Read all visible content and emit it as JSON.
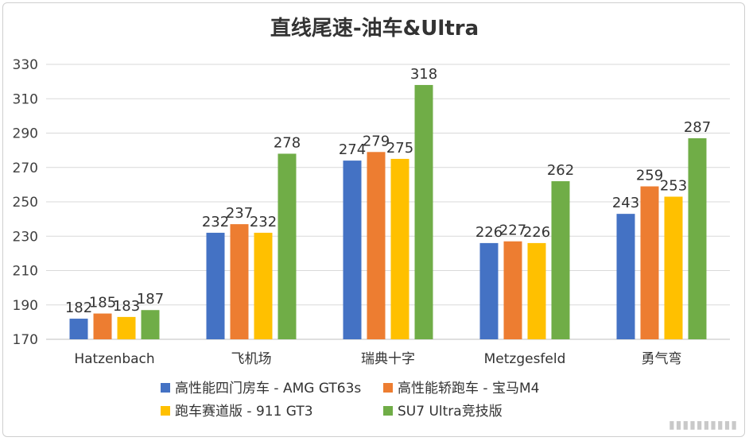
{
  "chart_data": {
    "type": "bar",
    "title": "直线尾速-油车&Ultra",
    "xlabel": "",
    "ylabel": "",
    "ylim": [
      170,
      330
    ],
    "yticks": [
      170,
      190,
      210,
      230,
      250,
      270,
      290,
      310,
      330
    ],
    "grid": true,
    "legend_position": "bottom",
    "categories": [
      "Hatzenbach",
      "飞机场",
      "瑞典十字",
      "Metzgesfeld",
      "勇气弯"
    ],
    "series": [
      {
        "name": "高性能四门房车 - AMG GT63s",
        "color": "#4472C4",
        "values": [
          182,
          232,
          274,
          226,
          243
        ]
      },
      {
        "name": "高性能轿跑车 - 宝马M4",
        "color": "#ED7D31",
        "values": [
          185,
          237,
          279,
          227,
          259
        ]
      },
      {
        "name": "跑车赛道版 - 911 GT3",
        "color": "#FFC000",
        "values": [
          183,
          232,
          275,
          226,
          253
        ]
      },
      {
        "name": "SU7 Ultra竞技版",
        "color": "#70AD47",
        "values": [
          187,
          278,
          318,
          262,
          287
        ]
      }
    ]
  }
}
